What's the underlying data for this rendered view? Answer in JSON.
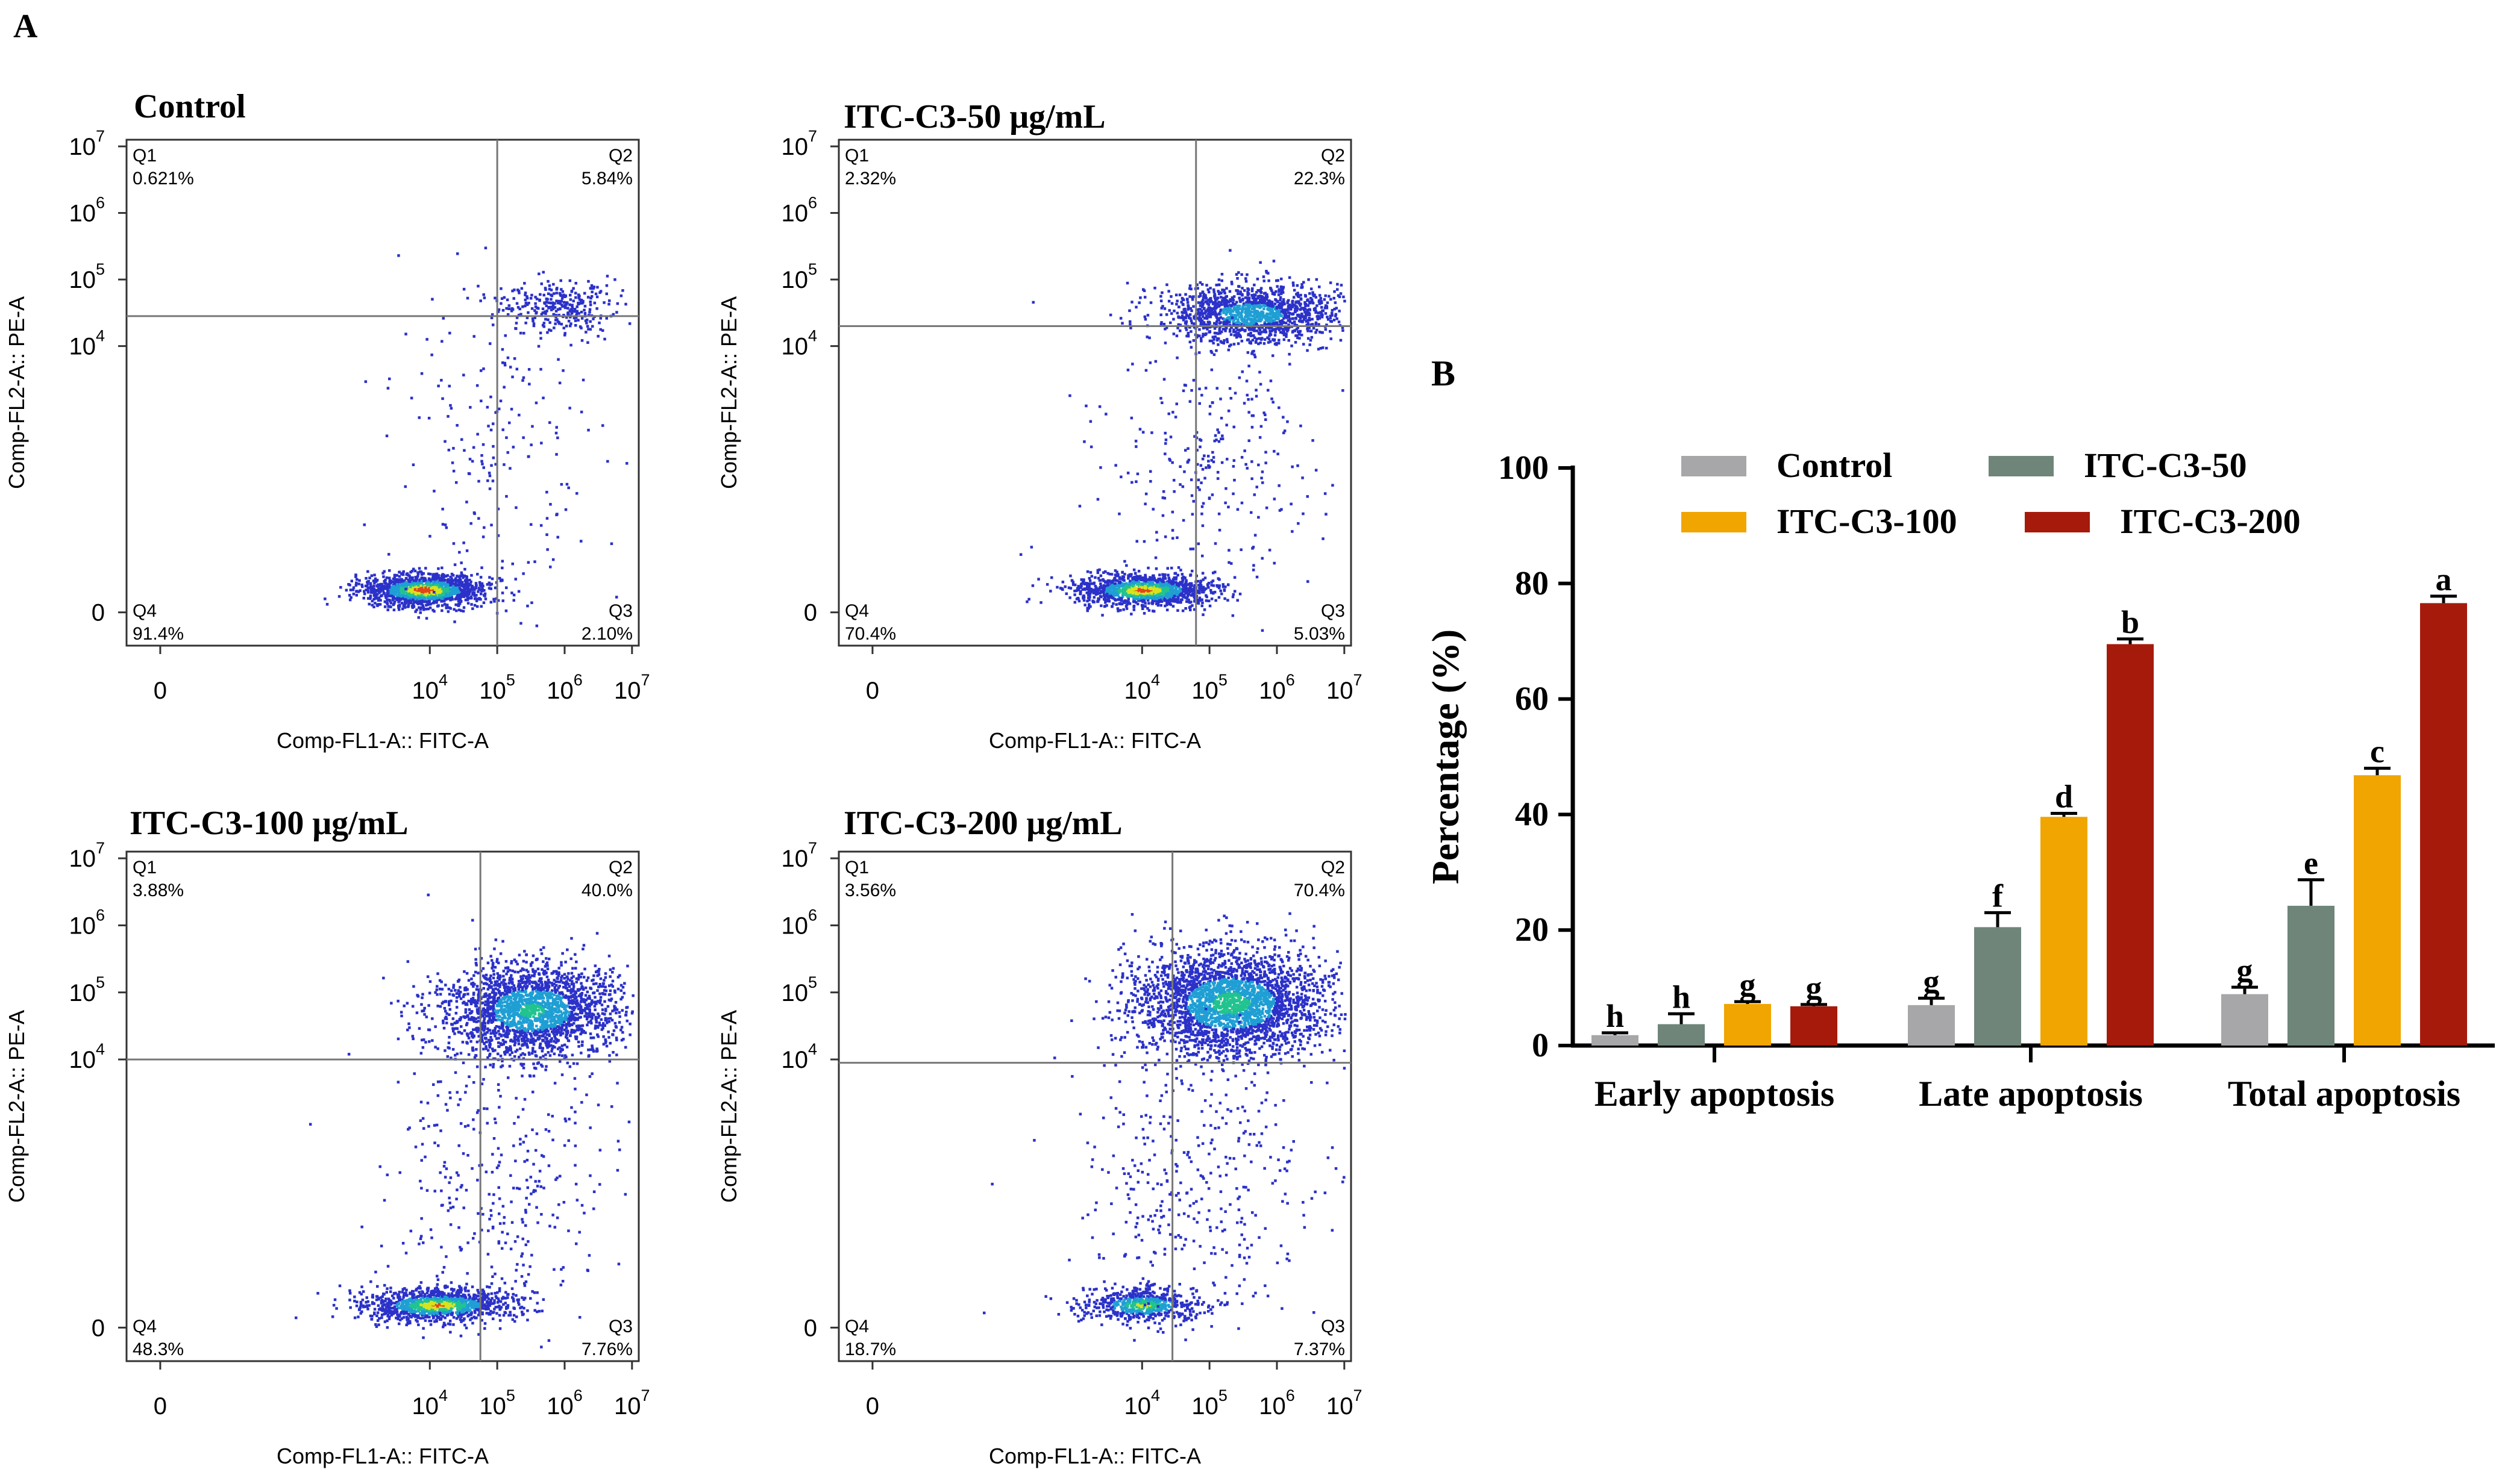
{
  "panel_a": {
    "label": "A",
    "x_axis_label": "Comp-FL1-A:: FITC-A",
    "y_axis_label": "Comp-FL2-A:: PE-A",
    "x_ticks": [
      {
        "base": "0",
        "exp": ""
      },
      {
        "base": "10",
        "exp": "4"
      },
      {
        "base": "10",
        "exp": "5"
      },
      {
        "base": "10",
        "exp": "6"
      },
      {
        "base": "10",
        "exp": "7"
      }
    ],
    "y_ticks": [
      {
        "base": "0",
        "exp": ""
      },
      {
        "base": "10",
        "exp": "4"
      },
      {
        "base": "10",
        "exp": "5"
      },
      {
        "base": "10",
        "exp": "6"
      },
      {
        "base": "10",
        "exp": "7"
      }
    ],
    "plots": [
      {
        "title": "Control",
        "gate": {
          "x": 5.0,
          "y": 4.45
        },
        "quadrants": {
          "q1": {
            "name": "Q1",
            "value": "0.621%"
          },
          "q2": {
            "name": "Q2",
            "value": "5.84%"
          },
          "q3": {
            "name": "Q3",
            "value": "2.10%"
          },
          "q4": {
            "name": "Q4",
            "value": "91.4%"
          }
        },
        "clusters": [
          {
            "cx": 3.9,
            "cy": 0.35,
            "sx": 0.45,
            "sy": 0.12,
            "n": 1500,
            "dense": 0.95
          },
          {
            "cx": 5.9,
            "cy": 4.6,
            "sx": 0.45,
            "sy": 0.2,
            "n": 320,
            "dense": 0.1
          },
          {
            "cx": 5.0,
            "cy": 2.2,
            "sx": 0.8,
            "sy": 1.3,
            "n": 200,
            "dense": 0.0
          }
        ]
      },
      {
        "title": "ITC-C3-50 μg/mL",
        "gate": {
          "x": 4.8,
          "y": 4.3
        },
        "quadrants": {
          "q1": {
            "name": "Q1",
            "value": "2.32%"
          },
          "q2": {
            "name": "Q2",
            "value": "22.3%"
          },
          "q3": {
            "name": "Q3",
            "value": "5.03%"
          },
          "q4": {
            "name": "Q4",
            "value": "70.4%"
          }
        },
        "clusters": [
          {
            "cx": 4.0,
            "cy": 0.35,
            "sx": 0.5,
            "sy": 0.12,
            "n": 1300,
            "dense": 0.9
          },
          {
            "cx": 5.6,
            "cy": 4.5,
            "sx": 0.65,
            "sy": 0.22,
            "n": 1400,
            "dense": 0.45
          },
          {
            "cx": 5.0,
            "cy": 2.3,
            "sx": 0.8,
            "sy": 1.2,
            "n": 300,
            "dense": 0.0
          }
        ]
      },
      {
        "title": "ITC-C3-100 μg/mL",
        "gate": {
          "x": 4.75,
          "y": 4.0
        },
        "quadrants": {
          "q1": {
            "name": "Q1",
            "value": "3.88%"
          },
          "q2": {
            "name": "Q2",
            "value": "40.0%"
          },
          "q3": {
            "name": "Q3",
            "value": "7.76%"
          },
          "q4": {
            "name": "Q4",
            "value": "48.3%"
          }
        },
        "clusters": [
          {
            "cx": 4.1,
            "cy": 0.35,
            "sx": 0.55,
            "sy": 0.12,
            "n": 1200,
            "dense": 0.85
          },
          {
            "cx": 5.5,
            "cy": 4.75,
            "sx": 0.65,
            "sy": 0.35,
            "n": 2200,
            "dense": 0.55
          },
          {
            "cx": 5.0,
            "cy": 2.2,
            "sx": 0.9,
            "sy": 1.2,
            "n": 350,
            "dense": 0.0
          }
        ]
      },
      {
        "title": "ITC-C3-200 μg/mL",
        "gate": {
          "x": 4.45,
          "y": 3.95
        },
        "quadrants": {
          "q1": {
            "name": "Q1",
            "value": "3.56%"
          },
          "q2": {
            "name": "Q2",
            "value": "70.4%"
          },
          "q3": {
            "name": "Q3",
            "value": "7.37%"
          },
          "q4": {
            "name": "Q4",
            "value": "18.7%"
          }
        },
        "clusters": [
          {
            "cx": 4.0,
            "cy": 0.35,
            "sx": 0.45,
            "sy": 0.12,
            "n": 600,
            "dense": 0.7
          },
          {
            "cx": 5.3,
            "cy": 4.85,
            "sx": 0.7,
            "sy": 0.4,
            "n": 2800,
            "dense": 0.6
          },
          {
            "cx": 4.8,
            "cy": 2.2,
            "sx": 0.9,
            "sy": 1.2,
            "n": 400,
            "dense": 0.0
          }
        ]
      }
    ]
  },
  "chart_data": {
    "type": "bar",
    "panel_label": "B",
    "title": "",
    "xlabel": "",
    "ylabel": "Percentage (%)",
    "ylim": [
      0,
      100
    ],
    "yticks": [
      0,
      20,
      40,
      60,
      80,
      100
    ],
    "categories": [
      "Early apoptosis",
      "Late apoptosis",
      "Total apoptosis"
    ],
    "legend_position": "top",
    "series": [
      {
        "name": "Control",
        "color": "#a7a7a9",
        "values": [
          1.8,
          7.0,
          8.9
        ],
        "errors": [
          0.4,
          1.2,
          1.2
        ],
        "letters": [
          "h",
          "g",
          "g"
        ]
      },
      {
        "name": "ITC-C3-50",
        "color": "#6f857a",
        "values": [
          3.7,
          20.5,
          24.2
        ],
        "errors": [
          1.8,
          2.5,
          4.5
        ],
        "letters": [
          "h",
          "f",
          "e"
        ]
      },
      {
        "name": "ITC-C3-100",
        "color": "#f0a500",
        "values": [
          7.2,
          39.6,
          46.8
        ],
        "errors": [
          0.4,
          0.6,
          1.2
        ],
        "letters": [
          "g",
          "d",
          "c"
        ]
      },
      {
        "name": "ITC-C3-200",
        "color": "#a61a0c",
        "values": [
          6.8,
          69.5,
          76.6
        ],
        "errors": [
          0.3,
          0.9,
          1.2
        ],
        "letters": [
          "g",
          "b",
          "a"
        ]
      }
    ]
  }
}
